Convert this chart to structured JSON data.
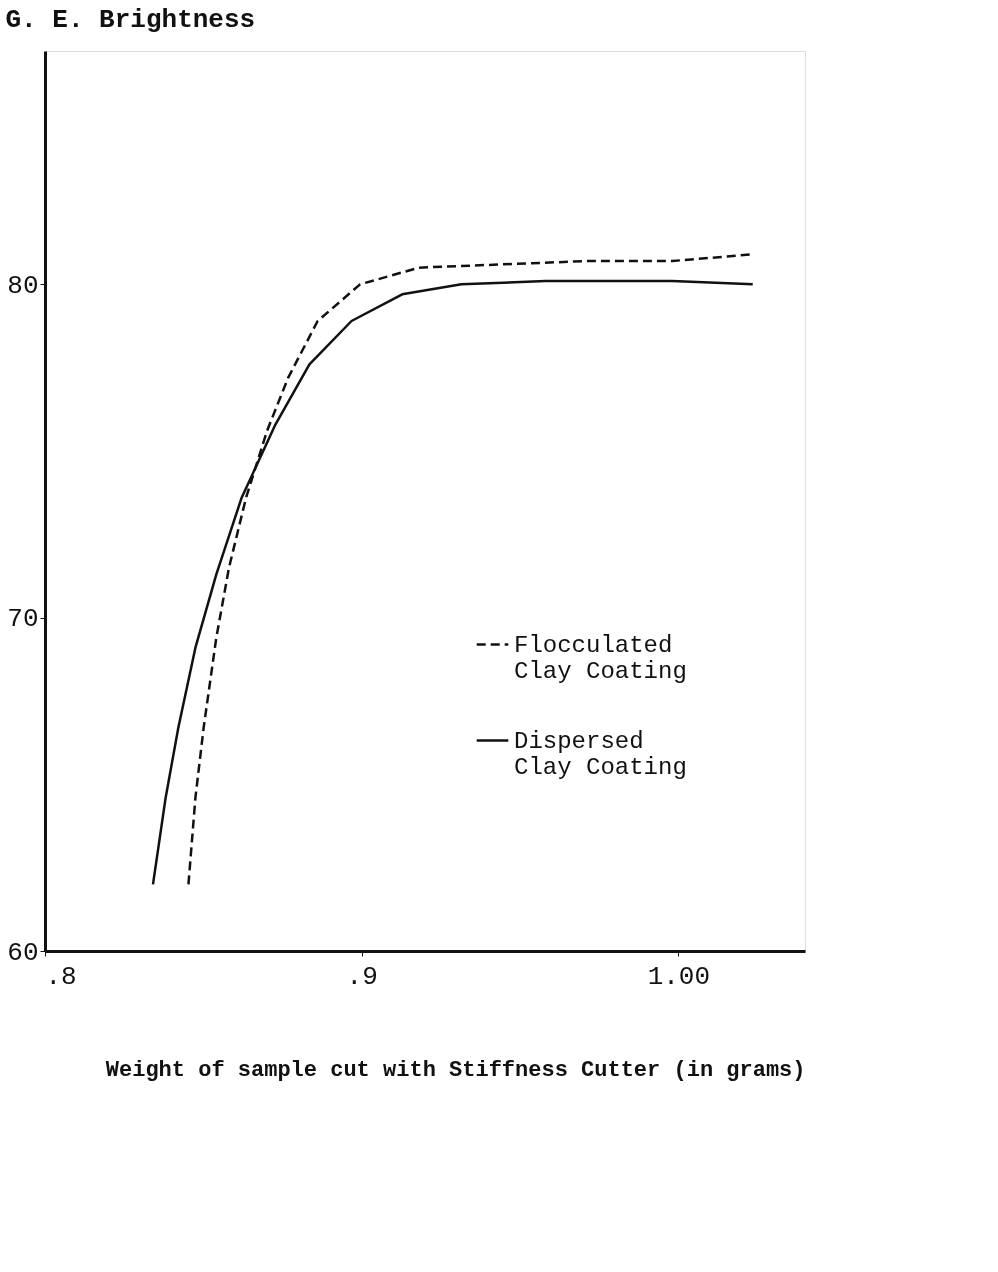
{
  "chart_data": {
    "type": "line",
    "ylabel": "G. E. Brightness",
    "xlabel": "Weight of sample cut with Stiffness Cutter (in grams)",
    "xlim": [
      0.8,
      1.04
    ],
    "ylim": [
      60,
      87
    ],
    "xticks": [
      {
        "value": 0.8,
        "label": ".8"
      },
      {
        "value": 0.9,
        "label": ".9"
      },
      {
        "value": 1.0,
        "label": "1.00"
      }
    ],
    "yticks": [
      60,
      70,
      80
    ],
    "grid": false,
    "legend": "right",
    "marker": "none",
    "series": [
      {
        "name": "Flocculated\nClay Coating",
        "color": "#111111",
        "line_style": "dashed",
        "x": [
          0.8453,
          0.8475,
          0.8501,
          0.8541,
          0.8581,
          0.8635,
          0.8701,
          0.8768,
          0.8861,
          0.8995,
          0.9181,
          0.9448,
          0.9715,
          0.9981,
          1.0235
        ],
        "values": [
          62.0,
          64.6,
          66.7,
          69.4,
          71.5,
          73.6,
          75.6,
          77.2,
          78.9,
          80.0,
          80.5,
          80.6,
          80.7,
          80.7,
          80.9
        ]
      },
      {
        "name": "Dispersed\nClay Coating",
        "color": "#111111",
        "line_style": "solid",
        "x": [
          0.8341,
          0.8381,
          0.8421,
          0.8475,
          0.8541,
          0.8621,
          0.8728,
          0.8835,
          0.8968,
          0.9128,
          0.9315,
          0.9581,
          0.9981,
          1.0235
        ],
        "values": [
          62.0,
          64.6,
          66.7,
          69.1,
          71.3,
          73.6,
          75.8,
          77.6,
          78.9,
          79.7,
          80.0,
          80.1,
          80.1,
          80.0
        ]
      }
    ]
  }
}
